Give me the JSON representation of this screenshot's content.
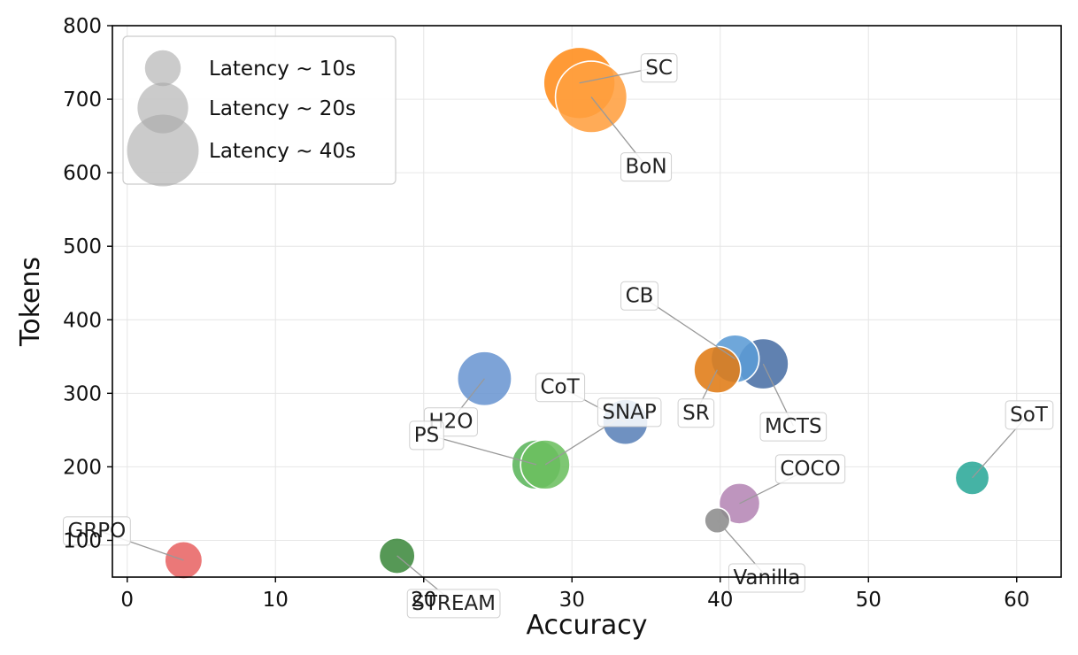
{
  "chart_data": {
    "type": "scatter",
    "xlabel": "Accuracy",
    "ylabel": "Tokens",
    "xlim": [
      -1,
      63
    ],
    "ylim": [
      50,
      800
    ],
    "xticks": [
      0,
      10,
      20,
      30,
      40,
      50,
      60
    ],
    "yticks": [
      100,
      200,
      300,
      400,
      500,
      600,
      700,
      800
    ],
    "grid": true,
    "legend_placement": "top-left",
    "size_legend": [
      {
        "label": "Latency ~ 10s",
        "latency": 10
      },
      {
        "label": "Latency ~ 20s",
        "latency": 20
      },
      {
        "label": "Latency ~ 40s",
        "latency": 40
      }
    ],
    "points": [
      {
        "name": "SC",
        "x": 30.5,
        "y": 722,
        "latency": 40,
        "color": "#ff8c1a"
      },
      {
        "name": "BoN",
        "x": 31.3,
        "y": 703,
        "latency": 40,
        "color": "#ff9f40"
      },
      {
        "name": "MCTS",
        "x": 42.9,
        "y": 340,
        "latency": 20,
        "color": "#4a6fa5"
      },
      {
        "name": "CB",
        "x": 41.0,
        "y": 347,
        "latency": 18,
        "color": "#5b9bd5"
      },
      {
        "name": "SR",
        "x": 39.8,
        "y": 332,
        "latency": 17,
        "color": "#e07b14"
      },
      {
        "name": "H2O",
        "x": 24.1,
        "y": 320,
        "latency": 23,
        "color": "#6b96d1"
      },
      {
        "name": "CoT",
        "x": 33.6,
        "y": 261,
        "latency": 16,
        "color": "#5b82b8"
      },
      {
        "name": "PS",
        "x": 27.6,
        "y": 203,
        "latency": 19,
        "color": "#5bb55b"
      },
      {
        "name": "SNAP",
        "x": 28.2,
        "y": 203,
        "latency": 19,
        "color": "#6cbf60"
      },
      {
        "name": "SoT",
        "x": 57.0,
        "y": 185,
        "latency": 9,
        "color": "#2ba898"
      },
      {
        "name": "COCO",
        "x": 41.3,
        "y": 150,
        "latency": 13,
        "color": "#b586b5"
      },
      {
        "name": "Vanilla",
        "x": 39.8,
        "y": 127,
        "latency": 5,
        "color": "#8c8c8c"
      },
      {
        "name": "GRPO",
        "x": 3.8,
        "y": 73,
        "latency": 11,
        "color": "#e86565"
      },
      {
        "name": "STREAM",
        "x": 18.2,
        "y": 79,
        "latency": 10,
        "color": "#3f8a3f"
      }
    ]
  }
}
